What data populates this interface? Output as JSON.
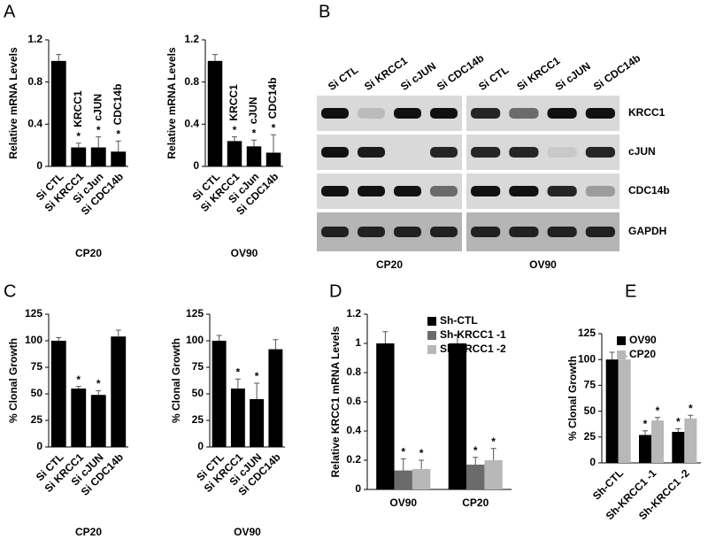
{
  "panel_labels": [
    "A",
    "B",
    "C",
    "D",
    "E"
  ],
  "chart_data": [
    {
      "type": "bar",
      "ylabel": "Relative mRNA Levels",
      "xlabel": "CP20",
      "categories": [
        "Si CTL",
        "Si KRCC1",
        "Si cJun",
        "Si CDC14b"
      ],
      "values": [
        1.0,
        0.18,
        0.18,
        0.14
      ],
      "errors": [
        0.06,
        0.04,
        0.1,
        0.1
      ],
      "significance": [
        null,
        "*",
        "*",
        "*"
      ],
      "bar_labels": [
        null,
        "KRCC1",
        "cJUN",
        "CDC14b"
      ],
      "color": "#000000",
      "ylim": [
        0,
        1.2
      ],
      "yticks": [
        0,
        0.4,
        0.8,
        1.2
      ]
    },
    {
      "type": "bar",
      "ylabel": "Relative mRNA Levels",
      "xlabel": "OV90",
      "categories": [
        "Si CTL",
        "Si KRCC1",
        "Si cJun",
        "Si CDC14b"
      ],
      "values": [
        1.0,
        0.24,
        0.19,
        0.13
      ],
      "errors": [
        0.06,
        0.04,
        0.06,
        0.17
      ],
      "significance": [
        null,
        "*",
        "*",
        "*"
      ],
      "bar_labels": [
        null,
        "KRCC1",
        "cJUN",
        "CDC14b"
      ],
      "color": "#000000",
      "ylim": [
        0,
        1.2
      ],
      "yticks": [
        0,
        0.4,
        0.8,
        1.2
      ]
    },
    {
      "type": "bar",
      "ylabel": "% Clonal Growth",
      "xlabel": "CP20",
      "categories": [
        "Si CTL",
        "Si KRCC1",
        "Si cJUN",
        "Si CDC14b"
      ],
      "values": [
        100,
        55,
        49,
        104
      ],
      "errors": [
        3,
        2,
        4,
        6
      ],
      "significance": [
        null,
        "*",
        "*",
        null
      ],
      "color": "#000000",
      "ylim": [
        0,
        125
      ],
      "yticks": [
        0,
        25,
        50,
        75,
        100,
        125
      ]
    },
    {
      "type": "bar",
      "ylabel": "% Clonal Growth",
      "xlabel": "OV90",
      "categories": [
        "Si CTL",
        "Si KRCC1",
        "Si cJUN",
        "Si CDC14b"
      ],
      "values": [
        100,
        55,
        45,
        92
      ],
      "errors": [
        5,
        9,
        15,
        9
      ],
      "significance": [
        null,
        "*",
        "*",
        null
      ],
      "color": "#000000",
      "ylim": [
        0,
        125
      ],
      "yticks": [
        0,
        25,
        50,
        75,
        100,
        125
      ]
    },
    {
      "type": "grouped_bar",
      "ylabel": "Relative KRCC1 mRNA Levels",
      "categories": [
        "OV90",
        "CP20"
      ],
      "legend": "upper right",
      "series": [
        {
          "name": "Sh-CTL",
          "color": "#000000",
          "values": [
            1,
            1
          ],
          "errors": [
            0.08,
            0.06
          ],
          "significance": [
            null,
            null
          ]
        },
        {
          "name": "Sh-KRCC1 -1",
          "color": "#6b6b6b",
          "values": [
            0.13,
            0.17
          ],
          "errors": [
            0.08,
            0.05
          ],
          "significance": [
            "*",
            "*"
          ]
        },
        {
          "name": "Sh-KRCC1 -2",
          "color": "#b8b8b8",
          "values": [
            0.14,
            0.2
          ],
          "errors": [
            0.06,
            0.08
          ],
          "significance": [
            "*",
            "*"
          ]
        }
      ],
      "ylim": [
        0,
        1.2
      ],
      "yticks": [
        0,
        0.2,
        0.4,
        0.6,
        0.8,
        1,
        1.2
      ]
    },
    {
      "type": "grouped_bar",
      "ylabel": "% Clonal Growth",
      "categories": [
        "Sh-CTL",
        "Sh-KRCC1 -1",
        "Sh-KRCC1 -2"
      ],
      "legend": "upper right",
      "series": [
        {
          "name": "OV90",
          "color": "#000000",
          "values": [
            100,
            27,
            30
          ],
          "errors": [
            7,
            4,
            3
          ],
          "significance": [
            null,
            "*",
            "*"
          ]
        },
        {
          "name": "CP20",
          "color": "#b8b8b8",
          "values": [
            100,
            41,
            43
          ],
          "errors": [
            3,
            3,
            3
          ],
          "significance": [
            null,
            "*",
            "*"
          ]
        }
      ],
      "ylim": [
        0,
        125
      ],
      "yticks": [
        0,
        25,
        50,
        75,
        100,
        125
      ]
    }
  ],
  "blot": {
    "lane_labels": [
      "Si CTL",
      "Si KRCC1",
      "Si cJUN",
      "Si CDC14b"
    ],
    "rows": [
      "KRCC1",
      "cJUN",
      "CDC14b",
      "GAPDH"
    ],
    "cell_lines": [
      "CP20",
      "OV90"
    ]
  }
}
